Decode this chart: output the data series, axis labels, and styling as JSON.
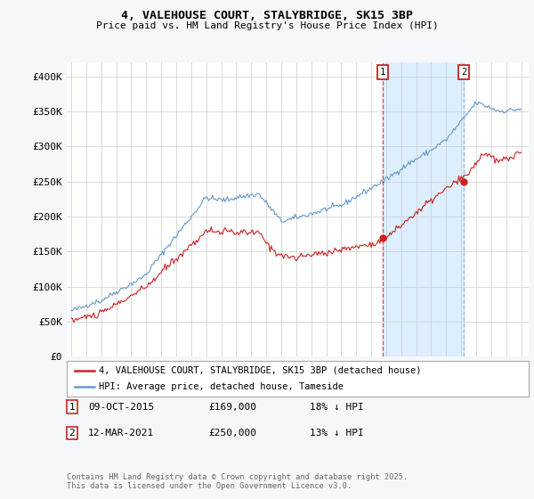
{
  "title": "4, VALEHOUSE COURT, STALYBRIDGE, SK15 3BP",
  "subtitle": "Price paid vs. HM Land Registry's House Price Index (HPI)",
  "ylim": [
    0,
    420000
  ],
  "yticks": [
    0,
    50000,
    100000,
    150000,
    200000,
    250000,
    300000,
    350000,
    400000
  ],
  "ytick_labels": [
    "£0",
    "£50K",
    "£100K",
    "£150K",
    "£200K",
    "£250K",
    "£300K",
    "£350K",
    "£400K"
  ],
  "xlim_start": 1994.7,
  "xlim_end": 2025.5,
  "red_color": "#cc2222",
  "blue_color": "#6699cc",
  "shade_color": "#ddeeff",
  "marker1_x": 2015.78,
  "marker1_y": 169000,
  "marker2_x": 2021.18,
  "marker2_y": 250000,
  "legend_red": "4, VALEHOUSE COURT, STALYBRIDGE, SK15 3BP (detached house)",
  "legend_blue": "HPI: Average price, detached house, Tameside",
  "ann1_date": "09-OCT-2015",
  "ann1_price": "£169,000",
  "ann1_hpi": "18% ↓ HPI",
  "ann2_date": "12-MAR-2021",
  "ann2_price": "£250,000",
  "ann2_hpi": "13% ↓ HPI",
  "footer": "Contains HM Land Registry data © Crown copyright and database right 2025.\nThis data is licensed under the Open Government Licence v3.0.",
  "background_color": "#f5f7fa",
  "plot_bg_color": "#ffffff"
}
